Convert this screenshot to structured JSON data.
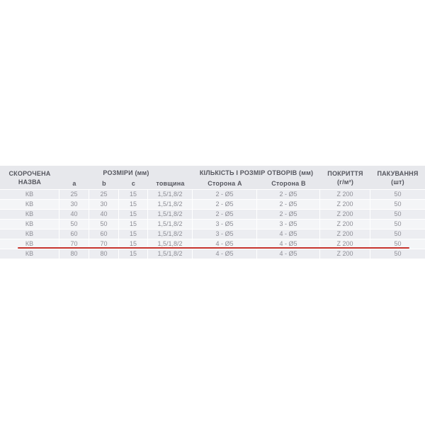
{
  "chart_data": {
    "type": "table",
    "title": "",
    "header": {
      "short_name": "СКОРОЧЕНА НАЗВА",
      "dimensions_group": "РОЗМІРИ (мм)",
      "dim_a": "a",
      "dim_b": "b",
      "dim_c": "c",
      "dim_thickness": "товщина",
      "holes_group": "КІЛЬКІСТЬ І РОЗМІР ОТВОРІВ (мм)",
      "side_a": "Сторона A",
      "side_b": "Сторона B",
      "coating_label": "ПОКРИТТЯ",
      "coating_unit": "(г/м²)",
      "packing_label": "ПАКУВАННЯ",
      "packing_unit": "(шт)"
    },
    "columns": [
      "СКОРОЧЕНА НАЗВА",
      "a",
      "b",
      "c",
      "товщина",
      "Сторона A",
      "Сторона B",
      "ПОКРИТТЯ (г/м²)",
      "ПАКУВАННЯ (шт)"
    ],
    "rows": [
      [
        "КВ",
        "25",
        "25",
        "15",
        "1,5/1,8/2",
        "2 - Ø5",
        "2 - Ø5",
        "Z 200",
        "50"
      ],
      [
        "КВ",
        "30",
        "30",
        "15",
        "1,5/1,8/2",
        "2 - Ø5",
        "2 - Ø5",
        "Z 200",
        "50"
      ],
      [
        "КВ",
        "40",
        "40",
        "15",
        "1,5/1,8/2",
        "2 - Ø5",
        "2 - Ø5",
        "Z 200",
        "50"
      ],
      [
        "КВ",
        "50",
        "50",
        "15",
        "1,5/1,8/2",
        "3 - Ø5",
        "3 - Ø5",
        "Z 200",
        "50"
      ],
      [
        "КВ",
        "60",
        "60",
        "15",
        "1,5/1,8/2",
        "3 - Ø5",
        "4 - Ø5",
        "Z 200",
        "50"
      ],
      [
        "КВ",
        "70",
        "70",
        "15",
        "1,5/1,8/2",
        "4 - Ø5",
        "4 - Ø5",
        "Z 200",
        "50"
      ],
      [
        "КВ",
        "80",
        "80",
        "15",
        "1,5/1,8/2",
        "4 - Ø5",
        "4 - Ø5",
        "Z 200",
        "50"
      ]
    ],
    "highlight": {
      "row_index": 5,
      "style": "red underline below row",
      "row_values": "КВ 70 70 15 1,5/1,8/2 4 - Ø5 4 - Ø5 Z 200 50"
    },
    "layout": {
      "grid": "off",
      "legend": "none"
    }
  },
  "colors": {
    "header_bg": "#e7e8ec",
    "row_odd_bg": "#ecedf1",
    "row_even_bg": "#f4f5f7",
    "header_text": "#55565e",
    "body_text": "#8d8d95",
    "highlight_line": "#c5322c",
    "page_bg": "#ffffff"
  }
}
